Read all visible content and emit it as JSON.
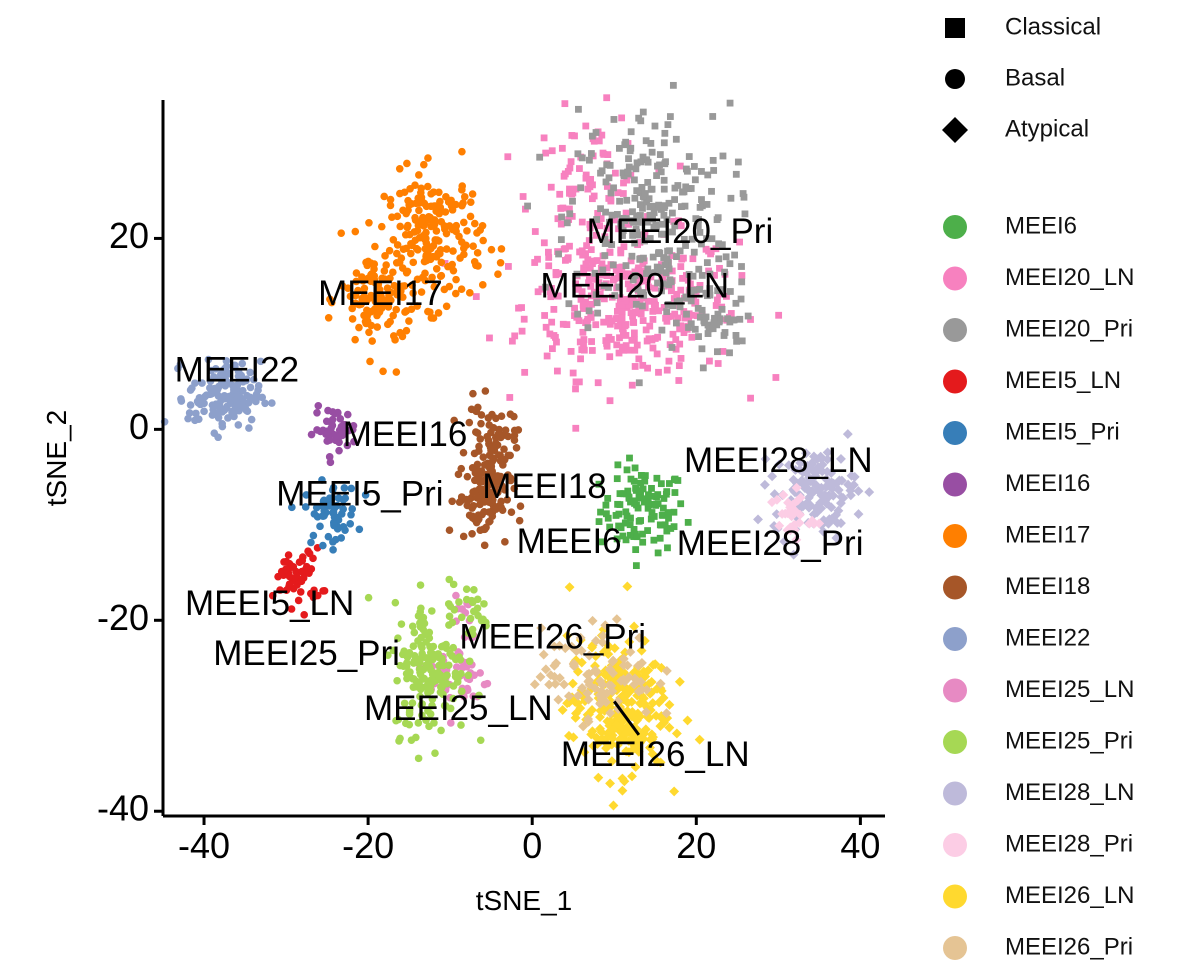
{
  "chart_data": {
    "type": "scatter",
    "xlabel": "tSNE_1",
    "ylabel": "tSNE_2",
    "xlim": [
      -45,
      43
    ],
    "ylim": [
      -40.5,
      34.5
    ],
    "x_ticks": [
      "-40",
      "-20",
      "0",
      "20",
      "40"
    ],
    "x_tick_values": [
      -40,
      -20,
      0,
      20,
      40
    ],
    "y_ticks": [
      "-40",
      "-20",
      "0",
      "20"
    ],
    "y_tick_values": [
      -40,
      -20,
      0,
      20
    ],
    "grid": false,
    "legend_position": "right",
    "shape_legend": [
      {
        "name": "Classical",
        "shape": "square"
      },
      {
        "name": "Basal",
        "shape": "circle"
      },
      {
        "name": "Atypical",
        "shape": "diamond"
      }
    ],
    "series": [
      {
        "name": "MEEI6",
        "color": "#4DAF4A",
        "shape": "square",
        "clusters": [
          {
            "cx": 13.5,
            "cy": -8.5,
            "sx": 2.6,
            "sy": 2.2,
            "n": 110
          }
        ]
      },
      {
        "name": "MEEI20_LN",
        "color": "#F781BF",
        "shape": "square",
        "clusters": [
          {
            "cx": 12,
            "cy": 13,
            "sx": 6.5,
            "sy": 3.8,
            "n": 340
          },
          {
            "cx": 7,
            "cy": 24,
            "sx": 3.5,
            "sy": 4.5,
            "n": 110
          }
        ]
      },
      {
        "name": "MEEI20_Pri",
        "color": "#999999",
        "shape": "square",
        "clusters": [
          {
            "cx": 14,
            "cy": 22,
            "sx": 5,
            "sy": 6,
            "n": 260
          },
          {
            "cx": 22,
            "cy": 12,
            "sx": 2.5,
            "sy": 2.5,
            "n": 60
          }
        ]
      },
      {
        "name": "MEEI5_LN",
        "color": "#E41A1C",
        "shape": "circle",
        "clusters": [
          {
            "cx": -28.5,
            "cy": -15.5,
            "sx": 1.4,
            "sy": 1.5,
            "n": 55
          }
        ]
      },
      {
        "name": "MEEI5_Pri",
        "color": "#377EB8",
        "shape": "circle",
        "clusters": [
          {
            "cx": -24.5,
            "cy": -8.8,
            "sx": 1.6,
            "sy": 1.6,
            "n": 60
          }
        ]
      },
      {
        "name": "MEEI16",
        "color": "#984EA3",
        "shape": "circle",
        "clusters": [
          {
            "cx": -24,
            "cy": 0,
            "sx": 1.3,
            "sy": 1.1,
            "n": 45
          }
        ]
      },
      {
        "name": "MEEI17",
        "color": "#FF7F00",
        "shape": "circle",
        "clusters": [
          {
            "cx": -12,
            "cy": 20,
            "sx": 3,
            "sy": 3.5,
            "n": 200
          },
          {
            "cx": -19,
            "cy": 13.5,
            "sx": 2.2,
            "sy": 3,
            "n": 110
          }
        ]
      },
      {
        "name": "MEEI18",
        "color": "#A65628",
        "shape": "circle",
        "clusters": [
          {
            "cx": -5,
            "cy": -2,
            "sx": 1.5,
            "sy": 2.3,
            "n": 90
          },
          {
            "cx": -6,
            "cy": -7.5,
            "sx": 1.6,
            "sy": 2,
            "n": 90
          }
        ]
      },
      {
        "name": "MEEI22",
        "color": "#8DA0CB",
        "shape": "circle",
        "clusters": [
          {
            "cx": -37.5,
            "cy": 3.5,
            "sx": 2.2,
            "sy": 1.8,
            "n": 140
          }
        ]
      },
      {
        "name": "MEEI25_LN",
        "color": "#E78AC3",
        "shape": "circle",
        "clusters": [
          {
            "cx": -9,
            "cy": -26,
            "sx": 1.8,
            "sy": 2,
            "n": 45
          },
          {
            "cx": -8.5,
            "cy": -19,
            "sx": 1,
            "sy": 1.5,
            "n": 10
          }
        ]
      },
      {
        "name": "MEEI25_Pri",
        "color": "#A6D854",
        "shape": "circle",
        "clusters": [
          {
            "cx": -12.5,
            "cy": -25,
            "sx": 2.2,
            "sy": 3.5,
            "n": 170
          },
          {
            "cx": -8,
            "cy": -19,
            "sx": 1.5,
            "sy": 1.5,
            "n": 25
          }
        ]
      },
      {
        "name": "MEEI28_LN",
        "color": "#BEBADA",
        "shape": "diamond",
        "clusters": [
          {
            "cx": 34.5,
            "cy": -6.5,
            "sx": 2.5,
            "sy": 2.2,
            "n": 130
          }
        ]
      },
      {
        "name": "MEEI28_Pri",
        "color": "#FCCDE5",
        "shape": "diamond",
        "clusters": [
          {
            "cx": 31.5,
            "cy": -9,
            "sx": 1.4,
            "sy": 1.4,
            "n": 30
          }
        ]
      },
      {
        "name": "MEEI26_LN",
        "color": "#FFD92F",
        "shape": "diamond",
        "clusters": [
          {
            "cx": 10.5,
            "cy": -29,
            "sx": 3,
            "sy": 3.5,
            "n": 260
          }
        ]
      },
      {
        "name": "MEEI26_Pri",
        "color": "#E5C494",
        "shape": "diamond",
        "clusters": [
          {
            "cx": 8,
            "cy": -25.5,
            "sx": 3.5,
            "sy": 2.5,
            "n": 90
          }
        ]
      }
    ],
    "annotations": [
      {
        "text": "MEEI20_Pri",
        "x": 18,
        "y": 20.5
      },
      {
        "text": "MEEI20_LN",
        "x": 12.5,
        "y": 14.8
      },
      {
        "text": "MEEI17",
        "x": -18.5,
        "y": 14
      },
      {
        "text": "MEEI22",
        "x": -36,
        "y": 6
      },
      {
        "text": "MEEI16",
        "x": -15.5,
        "y": -0.8
      },
      {
        "text": "MEEI18",
        "x": 1.5,
        "y": -6.2
      },
      {
        "text": "MEEI28_LN",
        "x": 30,
        "y": -3.5
      },
      {
        "text": "MEEI5_Pri",
        "x": -21,
        "y": -7
      },
      {
        "text": "MEEI6",
        "x": 4.5,
        "y": -12
      },
      {
        "text": "MEEI28_Pri",
        "x": 29,
        "y": -12.2
      },
      {
        "text": "MEEI5_LN",
        "x": -32,
        "y": -18.5
      },
      {
        "text": "MEEI26_Pri",
        "x": 2.5,
        "y": -22
      },
      {
        "text": "MEEI25_Pri",
        "x": -27.5,
        "y": -23.7
      },
      {
        "text": "MEEI25_LN",
        "x": -9,
        "y": -29.5
      },
      {
        "text": "MEEI26_LN",
        "x": 15,
        "y": -34.3
      }
    ]
  }
}
